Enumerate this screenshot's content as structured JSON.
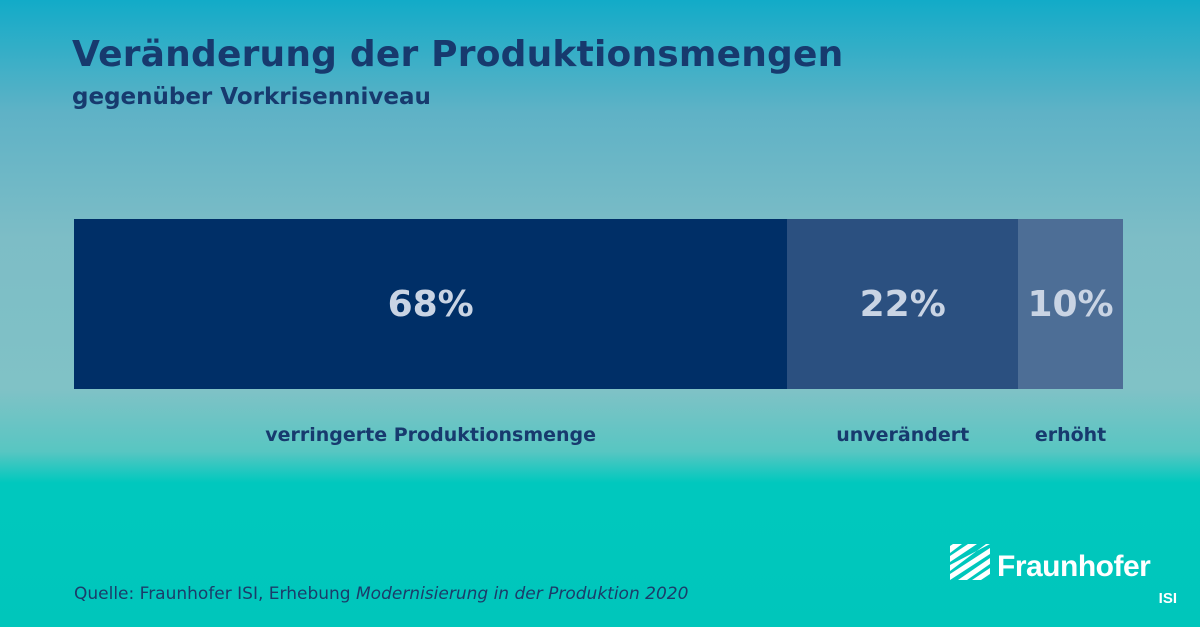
{
  "header": {
    "title": "Veränderung der Produktionsmengen",
    "subtitle": "gegenüber Vorkrisenniveau"
  },
  "chart_data": {
    "type": "bar",
    "orientation": "horizontal-stacked",
    "title": "Veränderung der Produktionsmengen",
    "subtitle": "gegenüber Vorkrisenniveau",
    "unit": "%",
    "grid": false,
    "legend": "none",
    "categories": [
      "verringerte Produktionsmenge",
      "unverändert",
      "erhöht"
    ],
    "values": [
      68,
      22,
      10
    ],
    "value_labels": [
      "68%",
      "22%",
      "10%"
    ],
    "colors": [
      "#002f67",
      "#2b5080",
      "#4d6e96"
    ]
  },
  "source": {
    "prefix": "Quelle: Fraunhofer ISI, Erhebung",
    "work": "Modernisierung in der Produktion 2020"
  },
  "logo": {
    "name": "Fraunhofer",
    "unit": "ISI",
    "icon": "fraunhofer-logo-icon"
  }
}
